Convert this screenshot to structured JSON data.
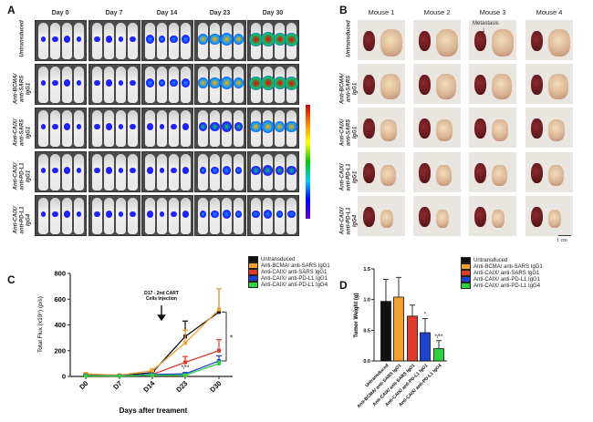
{
  "panelA": {
    "label": "A",
    "days": [
      "Day 0",
      "Day 7",
      "Day 14",
      "Day 23",
      "Day 30"
    ],
    "groups": [
      "Untransduced",
      "Anti-BCMA/\nanti-SARS IgG1",
      "Anti-CAIX/\nanti-SARS IgG1",
      "Anti-CAIX/\nanti-PD-L1 IgG1",
      "Anti-CAIX/\nanti-PD-L1 IgG4"
    ]
  },
  "panelB": {
    "label": "B",
    "mice": [
      "Mouse 1",
      "Mouse 2",
      "Mouse 3",
      "Mouse 4"
    ],
    "groups": [
      "Untransduced",
      "Anti-BCMA/\nanti-SARS IgG1",
      "Anti-CAIX/\nanti-SARS IgG1",
      "Anti-CAIX/\nanti-PD-L1 IgG1",
      "Anti-CAIX/\nanti-PD-L1 IgG4"
    ],
    "annotation": "Metastasis",
    "scale_label": "1 cm"
  },
  "colors": {
    "Untransduced": "#111111",
    "BCMA": "#f0a030",
    "CAIX_SARS": "#e03a2a",
    "PDL1_IgG1": "#2040d0",
    "PDL1_IgG4": "#30d040"
  },
  "chart_data": [
    {
      "type": "line",
      "panel_label": "C",
      "xlabel": "Days after treament",
      "ylabel": "Total Flux (x10⁶) (p/s)",
      "categories": [
        "D0",
        "D7",
        "D14",
        "D23",
        "D30"
      ],
      "ylim": [
        0,
        800
      ],
      "yticks": [
        "0",
        "200",
        "400",
        "600",
        "800"
      ],
      "annotation": "D17 - 2nd CART\nCells Injection",
      "significance": [
        "*",
        "*/**"
      ],
      "series": [
        {
          "name": "Untransduced",
          "color": "#111111",
          "values": [
            10,
            5,
            30,
            310,
            500
          ],
          "errors": [
            5,
            3,
            10,
            120,
            180
          ]
        },
        {
          "name": "Anti-BCMA/ anti-SARS IgG1",
          "color": "#f0a030",
          "values": [
            20,
            10,
            45,
            260,
            520
          ],
          "errors": [
            8,
            5,
            15,
            100,
            160
          ]
        },
        {
          "name": "Anti-CAIX/ anti-SARS IgG1",
          "color": "#e03a2a",
          "values": [
            10,
            5,
            15,
            110,
            200
          ],
          "errors": [
            5,
            3,
            8,
            45,
            85
          ]
        },
        {
          "name": "Anti-CAIX/ anti-PD-L1 IgG1",
          "color": "#2040d0",
          "values": [
            8,
            5,
            15,
            20,
            120
          ],
          "errors": [
            4,
            3,
            6,
            10,
            40
          ]
        },
        {
          "name": "Anti-CAIX/ anti-PD-L1 IgG4",
          "color": "#30d040",
          "values": [
            5,
            3,
            10,
            10,
            100
          ],
          "errors": [
            3,
            2,
            5,
            5,
            20
          ]
        }
      ]
    },
    {
      "type": "bar",
      "panel_label": "D",
      "ylabel": "Tumor Weight (g)",
      "categories": [
        "Untransduced",
        "Anti-BCMA/ anti-SARS IgG1",
        "Anti-CAIX/ anti-SARS IgG1",
        "Anti-CAIX/ anti-PD-L1 IgG1",
        "Anti-CAIX/ anti-PD-L1 IgG4"
      ],
      "values": [
        0.97,
        1.04,
        0.73,
        0.46,
        0.2
      ],
      "errors": [
        0.36,
        0.32,
        0.18,
        0.23,
        0.13
      ],
      "colors": [
        "#111111",
        "#f0a030",
        "#e03a2a",
        "#2040d0",
        "#30d040"
      ],
      "significance": [
        "",
        "",
        "",
        "*",
        "*/**"
      ],
      "ylim": [
        0,
        1.5
      ],
      "yticks": [
        "0.0",
        "0.5",
        "1.0",
        "1.5"
      ]
    }
  ]
}
